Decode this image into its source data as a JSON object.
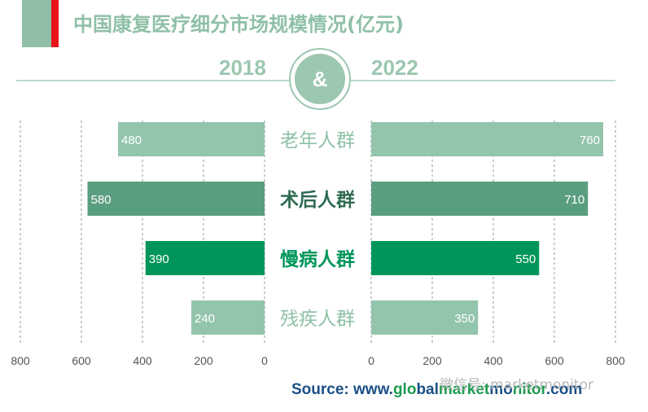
{
  "title": "中国康复医疗细分市场规模情况(亿元)",
  "year_left": "2018",
  "year_right": "2022",
  "ampersand": "&",
  "source": {
    "prefix": "Source: www.",
    "brand_g1": "glo",
    "brand_b1": "bal",
    "brand_g2": "market",
    "brand_b2": "mo",
    "brand_g3": "nitor",
    "suffix": ".com"
  },
  "watermark": "微信号: marketmonitor",
  "colors": {
    "light": "#93c5ad",
    "dark": "#5a9e80",
    "green": "#00965a",
    "title": "#8fc0a7",
    "red": "#e8141a"
  },
  "chart_data": [
    {
      "type": "bar",
      "orientation": "horizontal",
      "reversed_x": true,
      "panel": "left",
      "year": "2018",
      "categories": [
        "老年人群",
        "术后人群",
        "慢病人群",
        "残疾人群"
      ],
      "values": [
        480,
        580,
        390,
        240
      ],
      "xlim": [
        0,
        800
      ],
      "ticks": [
        800,
        600,
        400,
        200,
        0
      ],
      "grid": true
    },
    {
      "type": "bar",
      "orientation": "horizontal",
      "panel": "right",
      "year": "2022",
      "categories": [
        "老年人群",
        "术后人群",
        "慢病人群",
        "残疾人群"
      ],
      "values": [
        760,
        710,
        550,
        350
      ],
      "xlim": [
        0,
        800
      ],
      "ticks": [
        0,
        200,
        400,
        600,
        800
      ],
      "grid": true
    }
  ]
}
